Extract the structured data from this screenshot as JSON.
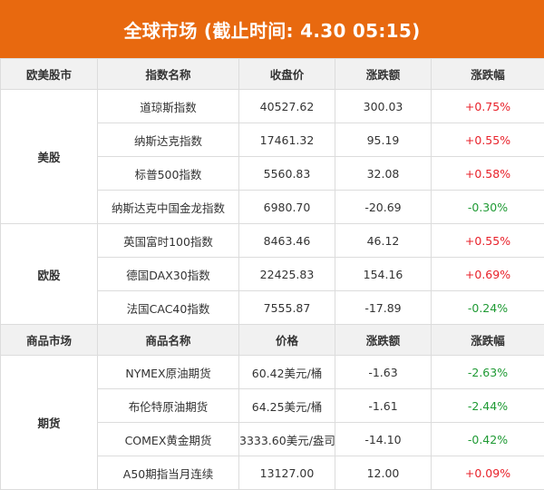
{
  "title": "全球市场 (截止时间: 4.30 05:15)",
  "stock_header": [
    "欧美股市",
    "指数名称",
    "收盘价",
    "涨跌额",
    "涨跌幅"
  ],
  "us_group": "美股",
  "us_rows": [
    {
      "name": "道琼斯指数",
      "price": "40527.62",
      "change": "300.03",
      "pct": "+0.75%",
      "dir": "up"
    },
    {
      "name": "纳斯达克指数",
      "price": "17461.32",
      "change": "95.19",
      "pct": "+0.55%",
      "dir": "up"
    },
    {
      "name": "标普500指数",
      "price": "5560.83",
      "change": "32.08",
      "pct": "+0.58%",
      "dir": "up"
    },
    {
      "name": "纳斯达克中国金龙指数",
      "price": "6980.70",
      "change": "-20.69",
      "pct": "-0.30%",
      "dir": "down"
    }
  ],
  "eu_group": "欧股",
  "eu_rows": [
    {
      "name": "英国富时100指数",
      "price": "8463.46",
      "change": "46.12",
      "pct": "+0.55%",
      "dir": "up"
    },
    {
      "name": "德国DAX30指数",
      "price": "22425.83",
      "change": "154.16",
      "pct": "+0.69%",
      "dir": "up"
    },
    {
      "name": "法国CAC40指数",
      "price": "7555.87",
      "change": "-17.89",
      "pct": "-0.24%",
      "dir": "down"
    }
  ],
  "commodity_header": [
    "商品市场",
    "商品名称",
    "价格",
    "涨跌额",
    "涨跌幅"
  ],
  "futures_group": "期货",
  "futures_rows": [
    {
      "name": "NYMEX原油期货",
      "price": "60.42美元/桶",
      "change": "-1.63",
      "pct": "-2.63%",
      "dir": "down"
    },
    {
      "name": "布伦特原油期货",
      "price": "64.25美元/桶",
      "change": "-1.61",
      "pct": "-2.44%",
      "dir": "down"
    },
    {
      "name": "COMEX黄金期货",
      "price": "3333.60美元/盎司",
      "change": "-14.10",
      "pct": "-0.42%",
      "dir": "down"
    },
    {
      "name": "A50期指当月连续",
      "price": "13127.00",
      "change": "12.00",
      "pct": "+0.09%",
      "dir": "up"
    }
  ],
  "colors": {
    "header_bg": "#e8690f",
    "up": "#e8222b",
    "down": "#1f9a34"
  }
}
